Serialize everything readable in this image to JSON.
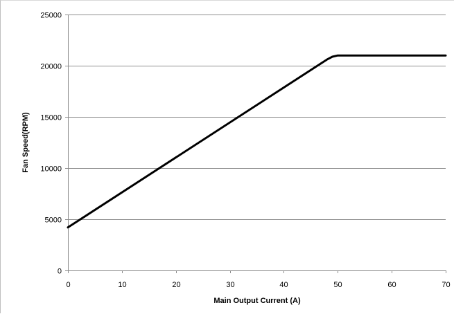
{
  "chart_data": {
    "type": "line",
    "title": "",
    "xlabel": "Main Output Current (A)",
    "ylabel": "Fan Speed(RPM)",
    "xlim": [
      0,
      70
    ],
    "ylim": [
      0,
      25000
    ],
    "x_ticks": [
      0,
      10,
      20,
      30,
      40,
      50,
      60,
      70
    ],
    "y_ticks": [
      0,
      5000,
      10000,
      15000,
      20000,
      25000
    ],
    "grid": "horizontal",
    "legend": "none",
    "series": [
      {
        "x": [
          0,
          48,
          49,
          50,
          51,
          70
        ],
        "y": [
          4200,
          20600,
          20880,
          21000,
          21000,
          21000
        ],
        "color": "#000000"
      }
    ]
  }
}
